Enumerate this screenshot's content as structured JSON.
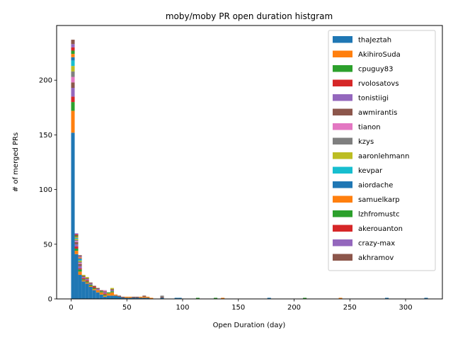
{
  "chart_data": {
    "type": "bar",
    "stacked": true,
    "title": "moby/moby PR open duration histgram",
    "xlabel": "Open Duration (day)",
    "ylabel": "# of merged PRs",
    "xlim": [
      -13,
      333
    ],
    "ylim": [
      0,
      250
    ],
    "xticks": [
      0,
      50,
      100,
      150,
      200,
      250,
      300
    ],
    "yticks": [
      0,
      50,
      100,
      150,
      200
    ],
    "legend_position": "upper right",
    "bin_width": 3.2,
    "bin_starts": [
      0,
      3.2,
      6.4,
      9.6,
      12.8,
      16,
      19.2,
      22.4,
      25.6,
      28.8,
      32,
      35.2,
      38.4,
      41.6,
      44.8,
      48,
      51.2,
      54.4,
      57.6,
      60.8,
      64,
      67.2,
      70.4,
      80,
      92.8,
      96,
      112,
      128,
      134.4,
      150.4,
      176,
      208,
      240,
      281.6,
      316.8
    ],
    "series": [
      {
        "name": "thaJeztah",
        "color": "#1f77b4",
        "values": [
          152,
          41,
          22,
          16,
          14,
          11,
          8,
          6,
          4,
          2,
          3,
          3,
          3,
          2,
          1,
          1,
          1,
          1,
          1,
          1,
          1,
          1,
          0,
          1,
          1,
          1,
          0,
          0,
          0,
          0,
          1,
          0,
          0,
          1,
          1
        ]
      },
      {
        "name": "AkihiroSuda",
        "color": "#ff7f0e",
        "values": [
          20,
          3,
          3,
          1,
          1,
          1,
          1,
          2,
          2,
          1,
          2,
          3,
          1,
          0,
          0,
          1,
          1,
          0,
          0,
          1,
          1,
          1,
          1,
          0,
          0,
          0,
          0,
          0,
          1,
          0,
          0,
          0,
          1,
          0,
          0
        ]
      },
      {
        "name": "cpuguy83",
        "color": "#2ca02c",
        "values": [
          8,
          2,
          2,
          1,
          1,
          1,
          1,
          0,
          1,
          1,
          1,
          1,
          0,
          0,
          0,
          0,
          0,
          0,
          0,
          0,
          0,
          0,
          0,
          0,
          0,
          0,
          1,
          1,
          0,
          0,
          0,
          1,
          0,
          0,
          0
        ]
      },
      {
        "name": "rvolosatovs",
        "color": "#d62728",
        "values": [
          5,
          2,
          1,
          1,
          1,
          0,
          1,
          0,
          0,
          1,
          0,
          0,
          0,
          0,
          0,
          0,
          0,
          0,
          0,
          0,
          0,
          0,
          0,
          0,
          0,
          0,
          0,
          0,
          0,
          0,
          0,
          0,
          0,
          0,
          0
        ]
      },
      {
        "name": "tonistiigi",
        "color": "#9467bd",
        "values": [
          8,
          2,
          2,
          1,
          1,
          1,
          0,
          1,
          0,
          1,
          0,
          1,
          0,
          0,
          0,
          0,
          0,
          0,
          0,
          0,
          0,
          0,
          0,
          0,
          0,
          0,
          0,
          0,
          0,
          0,
          0,
          0,
          0,
          0,
          0
        ]
      },
      {
        "name": "awmirantis",
        "color": "#8c564b",
        "values": [
          5,
          2,
          2,
          1,
          1,
          1,
          1,
          1,
          1,
          1,
          0,
          1,
          0,
          1,
          1,
          0,
          0,
          1,
          1,
          0,
          1,
          0,
          0,
          1,
          0,
          0,
          0,
          0,
          0,
          0,
          0,
          0,
          0,
          0,
          0
        ]
      },
      {
        "name": "tianon",
        "color": "#e377c2",
        "values": [
          5,
          1,
          1,
          0,
          0,
          0,
          0,
          0,
          0,
          1,
          0,
          0,
          0,
          0,
          0,
          0,
          0,
          0,
          0,
          0,
          0,
          0,
          0,
          0,
          0,
          0,
          0,
          0,
          0,
          0,
          0,
          0,
          0,
          0,
          0
        ]
      },
      {
        "name": "kzys",
        "color": "#7f7f7f",
        "values": [
          5,
          1,
          1,
          0,
          0,
          0,
          0,
          0,
          0,
          0,
          0,
          0,
          0,
          0,
          0,
          0,
          0,
          0,
          0,
          0,
          0,
          0,
          0,
          1,
          0,
          0,
          0,
          0,
          0,
          0,
          0,
          0,
          0,
          0,
          0
        ]
      },
      {
        "name": "aaronlehmann",
        "color": "#bcbd22",
        "values": [
          5,
          1,
          1,
          1,
          1,
          0,
          0,
          0,
          0,
          0,
          0,
          1,
          0,
          0,
          0,
          0,
          0,
          0,
          0,
          0,
          0,
          0,
          0,
          0,
          0,
          0,
          0,
          0,
          0,
          0,
          0,
          0,
          0,
          0,
          0
        ]
      },
      {
        "name": "kevpar",
        "color": "#17becf",
        "values": [
          5,
          1,
          1,
          0,
          0,
          0,
          0,
          0,
          0,
          0,
          0,
          0,
          0,
          0,
          0,
          0,
          0,
          0,
          0,
          0,
          0,
          0,
          0,
          0,
          0,
          0,
          0,
          0,
          0,
          0,
          0,
          0,
          0,
          0,
          0
        ]
      },
      {
        "name": "aiordache",
        "color": "#1f77b4",
        "values": [
          3,
          0,
          1,
          0,
          0,
          0,
          0,
          0,
          0,
          0,
          0,
          0,
          0,
          0,
          0,
          0,
          0,
          0,
          0,
          0,
          0,
          0,
          0,
          0,
          0,
          0,
          0,
          0,
          0,
          0,
          0,
          0,
          0,
          0,
          0
        ]
      },
      {
        "name": "samuelkarp",
        "color": "#ff7f0e",
        "values": [
          3,
          1,
          1,
          0,
          0,
          0,
          0,
          0,
          0,
          0,
          0,
          0,
          0,
          0,
          0,
          0,
          0,
          0,
          0,
          0,
          0,
          0,
          0,
          0,
          0,
          0,
          0,
          0,
          0,
          0,
          0,
          0,
          0,
          0,
          0
        ]
      },
      {
        "name": "lzhfromustc",
        "color": "#2ca02c",
        "values": [
          3,
          1,
          0,
          0,
          0,
          0,
          0,
          0,
          0,
          0,
          0,
          0,
          0,
          0,
          0,
          0,
          0,
          0,
          0,
          0,
          0,
          0,
          0,
          0,
          0,
          0,
          0,
          0,
          0,
          0,
          0,
          0,
          0,
          0,
          0
        ]
      },
      {
        "name": "akerouanton",
        "color": "#d62728",
        "values": [
          3,
          1,
          0,
          0,
          0,
          0,
          0,
          0,
          0,
          0,
          0,
          0,
          0,
          0,
          0,
          0,
          0,
          0,
          0,
          0,
          0,
          0,
          0,
          0,
          0,
          0,
          0,
          0,
          0,
          0,
          0,
          0,
          0,
          0,
          0
        ]
      },
      {
        "name": "crazy-max",
        "color": "#9467bd",
        "values": [
          3,
          1,
          1,
          0,
          0,
          0,
          0,
          0,
          0,
          0,
          0,
          0,
          0,
          0,
          0,
          0,
          0,
          0,
          0,
          0,
          0,
          0,
          0,
          0,
          0,
          0,
          0,
          0,
          0,
          0,
          0,
          0,
          0,
          0,
          0
        ]
      },
      {
        "name": "akhramov",
        "color": "#8c564b",
        "values": [
          4,
          0,
          1,
          0,
          0,
          0,
          0,
          0,
          0,
          0,
          0,
          0,
          0,
          0,
          0,
          0,
          0,
          0,
          0,
          0,
          0,
          0,
          0,
          0,
          0,
          0,
          0,
          0,
          0,
          0,
          0,
          0,
          0,
          0,
          0
        ]
      }
    ]
  }
}
